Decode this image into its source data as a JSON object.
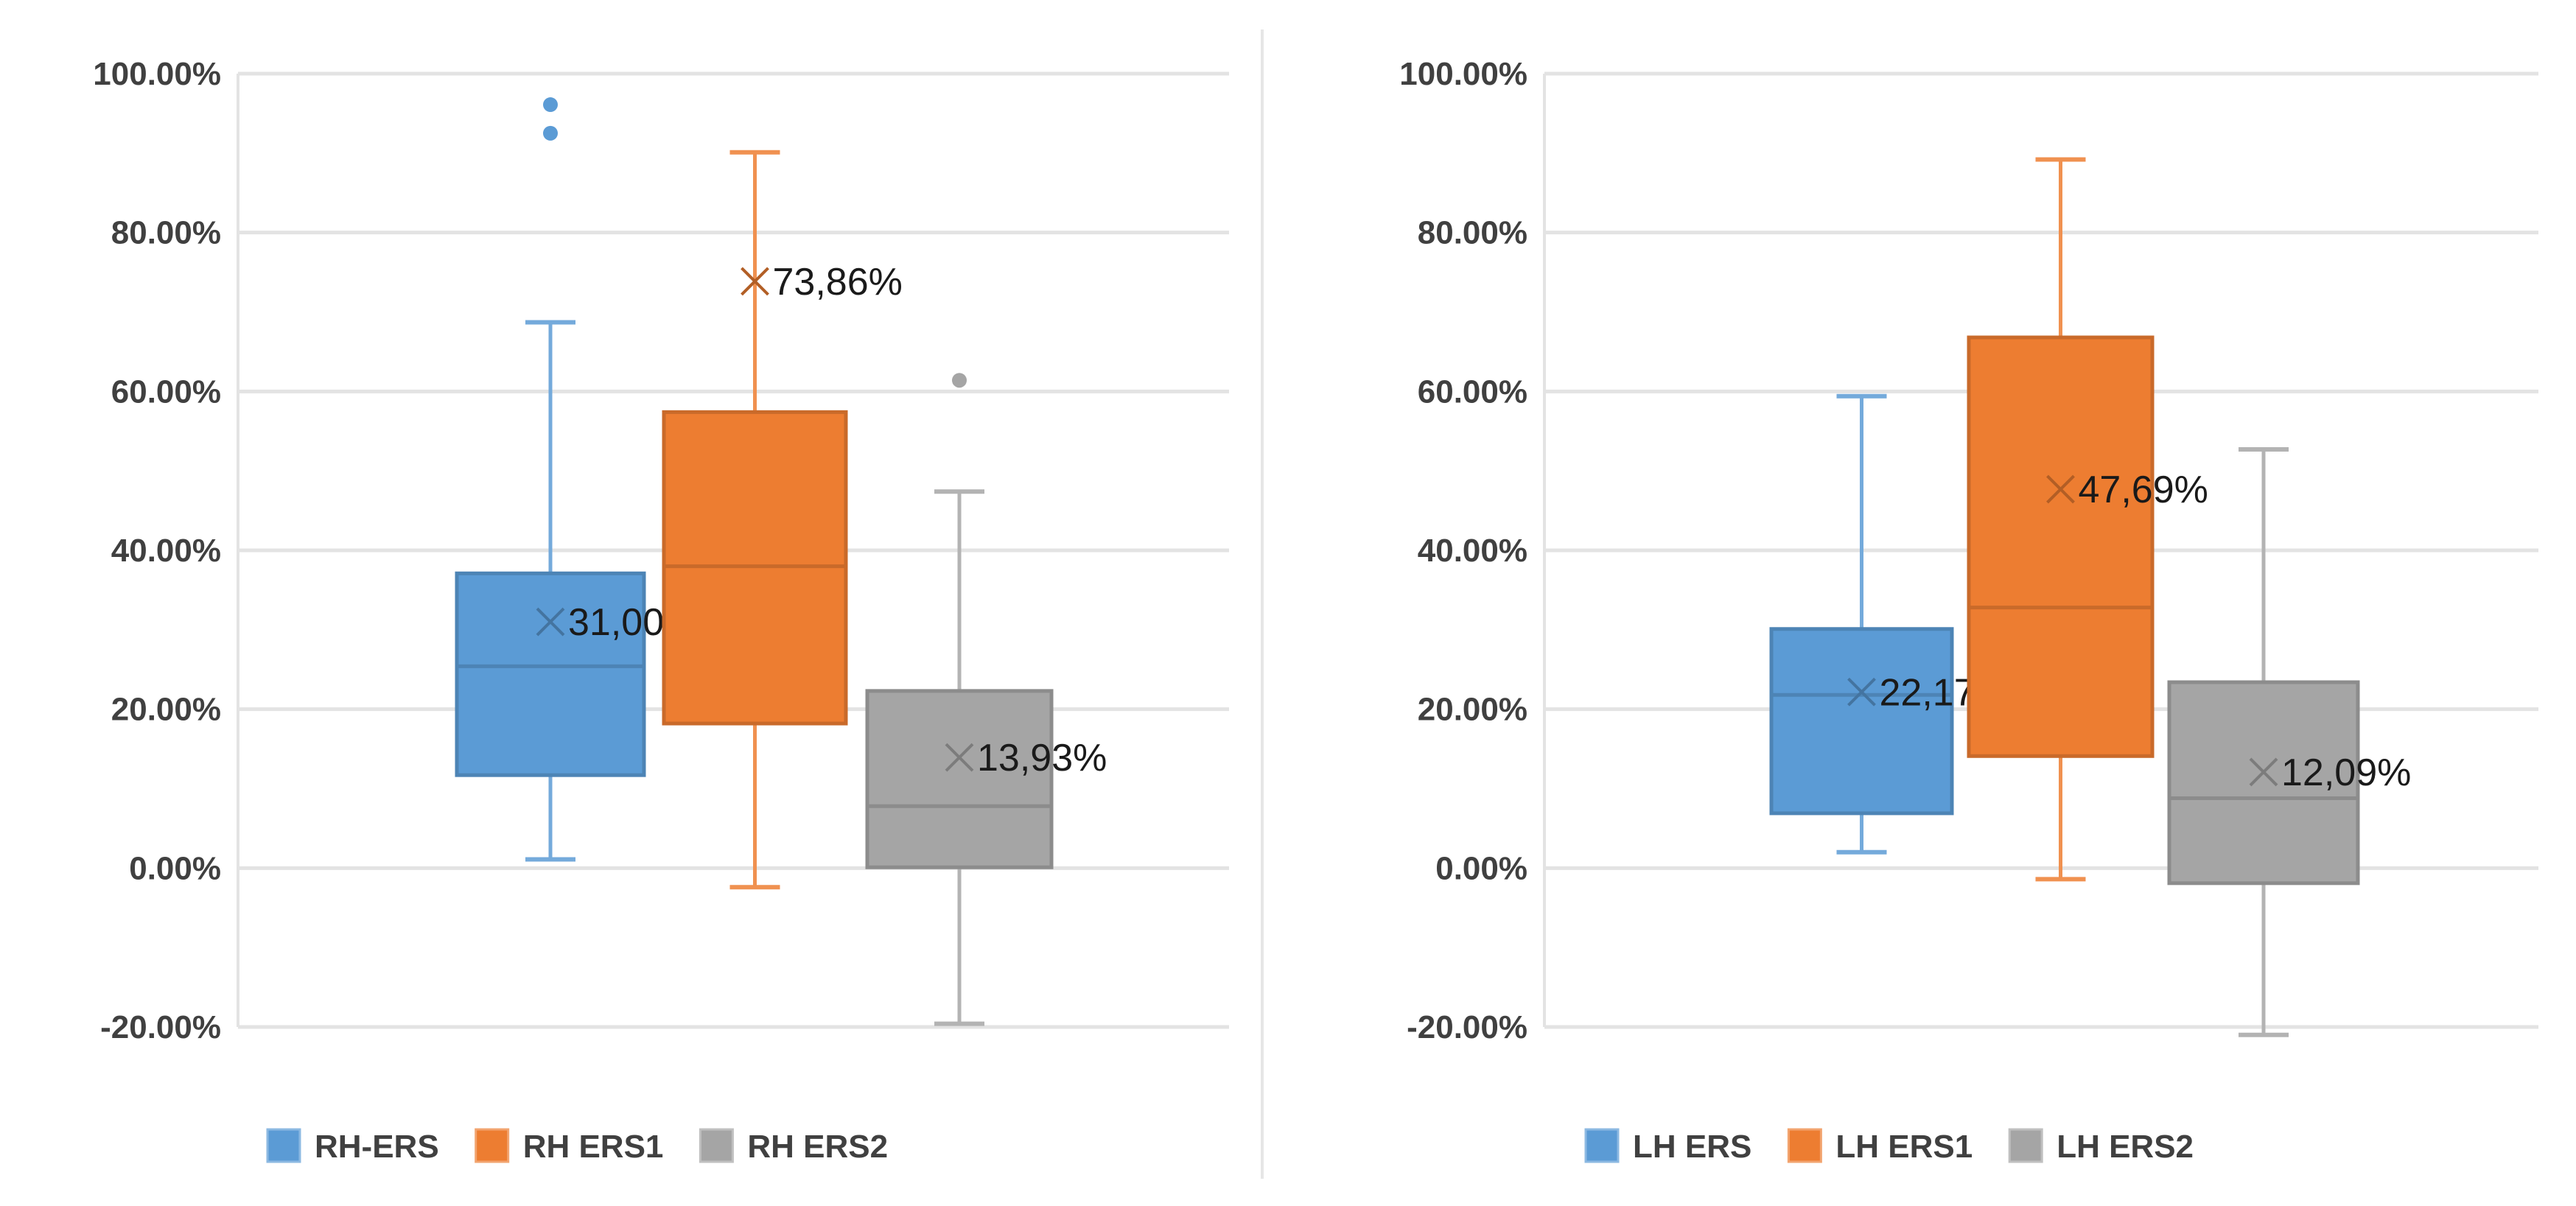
{
  "chart_data": [
    {
      "type": "boxplot",
      "ylim": [
        -20,
        100
      ],
      "yticks": [
        "100.00%",
        "80.00%",
        "60.00%",
        "40.00%",
        "20.00%",
        "0.00%",
        "-20.00%"
      ],
      "ytick_values": [
        100,
        80,
        60,
        40,
        20,
        0,
        -20
      ],
      "grid": true,
      "legend_position": "bottom",
      "series": [
        {
          "name": "RH-ERS",
          "color": "#5B9BD5",
          "min": 1.1,
          "q1": 11.7,
          "median": 25.4,
          "q3": 37.1,
          "max": 68.7,
          "mean": 31.0,
          "mean_label": "31,00%",
          "outliers": [
            96.1,
            92.5
          ]
        },
        {
          "name": "RH ERS1",
          "color": "#ED7D31",
          "min": -2.4,
          "q1": 18.2,
          "median": 38.0,
          "q3": 57.4,
          "max": 90.1,
          "mean": 73.86,
          "mean_label": "73,86%",
          "outliers": []
        },
        {
          "name": "RH ERS2",
          "color": "#A5A5A5",
          "min": -19.6,
          "q1": 0.1,
          "median": 7.8,
          "q3": 22.3,
          "max": 47.4,
          "mean": 13.93,
          "mean_label": "13,93%",
          "outliers": [
            61.4
          ]
        }
      ]
    },
    {
      "type": "boxplot",
      "ylim": [
        -20,
        100
      ],
      "yticks": [
        "100.00%",
        "80.00%",
        "60.00%",
        "40.00%",
        "20.00%",
        "0.00%",
        "-20.00%"
      ],
      "ytick_values": [
        100,
        80,
        60,
        40,
        20,
        0,
        -20
      ],
      "grid": true,
      "legend_position": "bottom",
      "series": [
        {
          "name": "LH ERS",
          "color": "#5B9BD5",
          "min": 2.0,
          "q1": 6.9,
          "median": 21.8,
          "q3": 30.1,
          "max": 59.4,
          "mean": 22.17,
          "mean_label": "22,17%",
          "outliers": []
        },
        {
          "name": "LH ERS1",
          "color": "#ED7D31",
          "min": -1.4,
          "q1": 14.1,
          "median": 32.8,
          "q3": 66.8,
          "max": 89.2,
          "mean": 47.69,
          "mean_label": "47,69%",
          "outliers": []
        },
        {
          "name": "LH ERS2",
          "color": "#A5A5A5",
          "min": -21.0,
          "q1": -1.9,
          "median": 8.8,
          "q3": 23.4,
          "max": 52.7,
          "mean": 12.09,
          "mean_label": "12,09%",
          "outliers": []
        }
      ]
    }
  ]
}
